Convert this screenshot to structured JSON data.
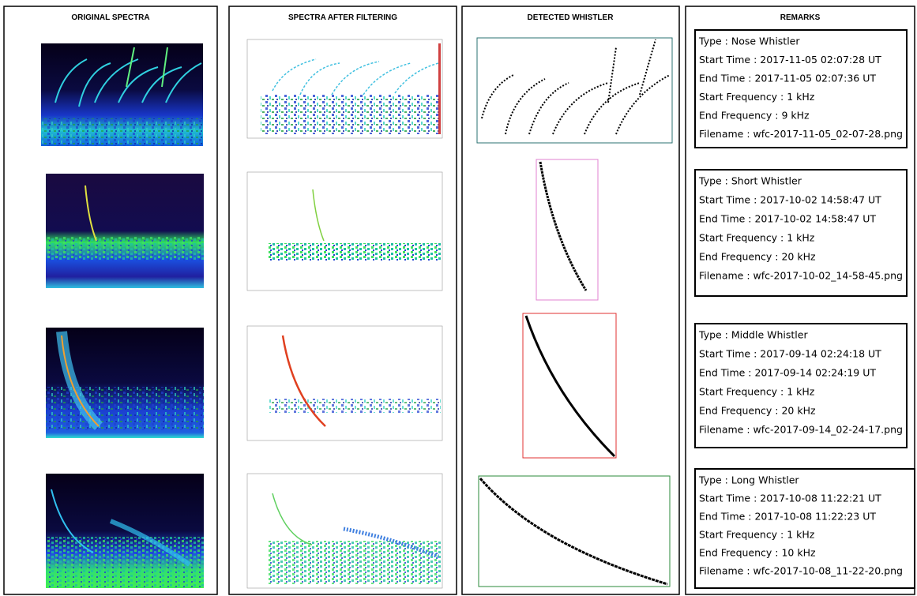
{
  "columns": [
    "ORIGINAL SPECTRA",
    "SPECTRA AFTER FILTERING",
    "DETECTED WHISTLER",
    "REMARKS"
  ],
  "remarks": [
    [
      "Type : Nose Whistler",
      "Start Time : 2017-11-05 02:07:28 UT",
      "End Time : 2017-11-05 02:07:36 UT",
      "Start Frequency : 1 kHz",
      "End Frequency :  9 kHz",
      "Filename : wfc-2017-11-05_02-07-28.png"
    ],
    [
      "Type : Short Whistler",
      "Start Time : 2017-10-02 14:58:47 UT",
      "End Time : 2017-10-02 14:58:47 UT",
      "Start Frequency :  1 kHz",
      "End Frequency :  20 kHz",
      "Filename : wfc-2017-10-02_14-58-45.png"
    ],
    [
      "Type : Middle Whistler",
      "Start Time : 2017-09-14 02:24:18 UT",
      "End Time : 2017-09-14 02:24:19 UT",
      "Start Frequency :  1 kHz",
      "End Frequency :  20 kHz",
      "Filename : wfc-2017-09-14_02-24-17.png"
    ],
    [
      "Type : Long Whistler",
      "Start Time : 2017-10-08 11:22:21 UT",
      "End Time : 2017-10-08 11:22:23 UT",
      "Start Frequency :  1 kHz",
      "End Frequency :  10 kHz",
      "Filename : wfc-2017-10-08_11-22-20.png"
    ]
  ]
}
